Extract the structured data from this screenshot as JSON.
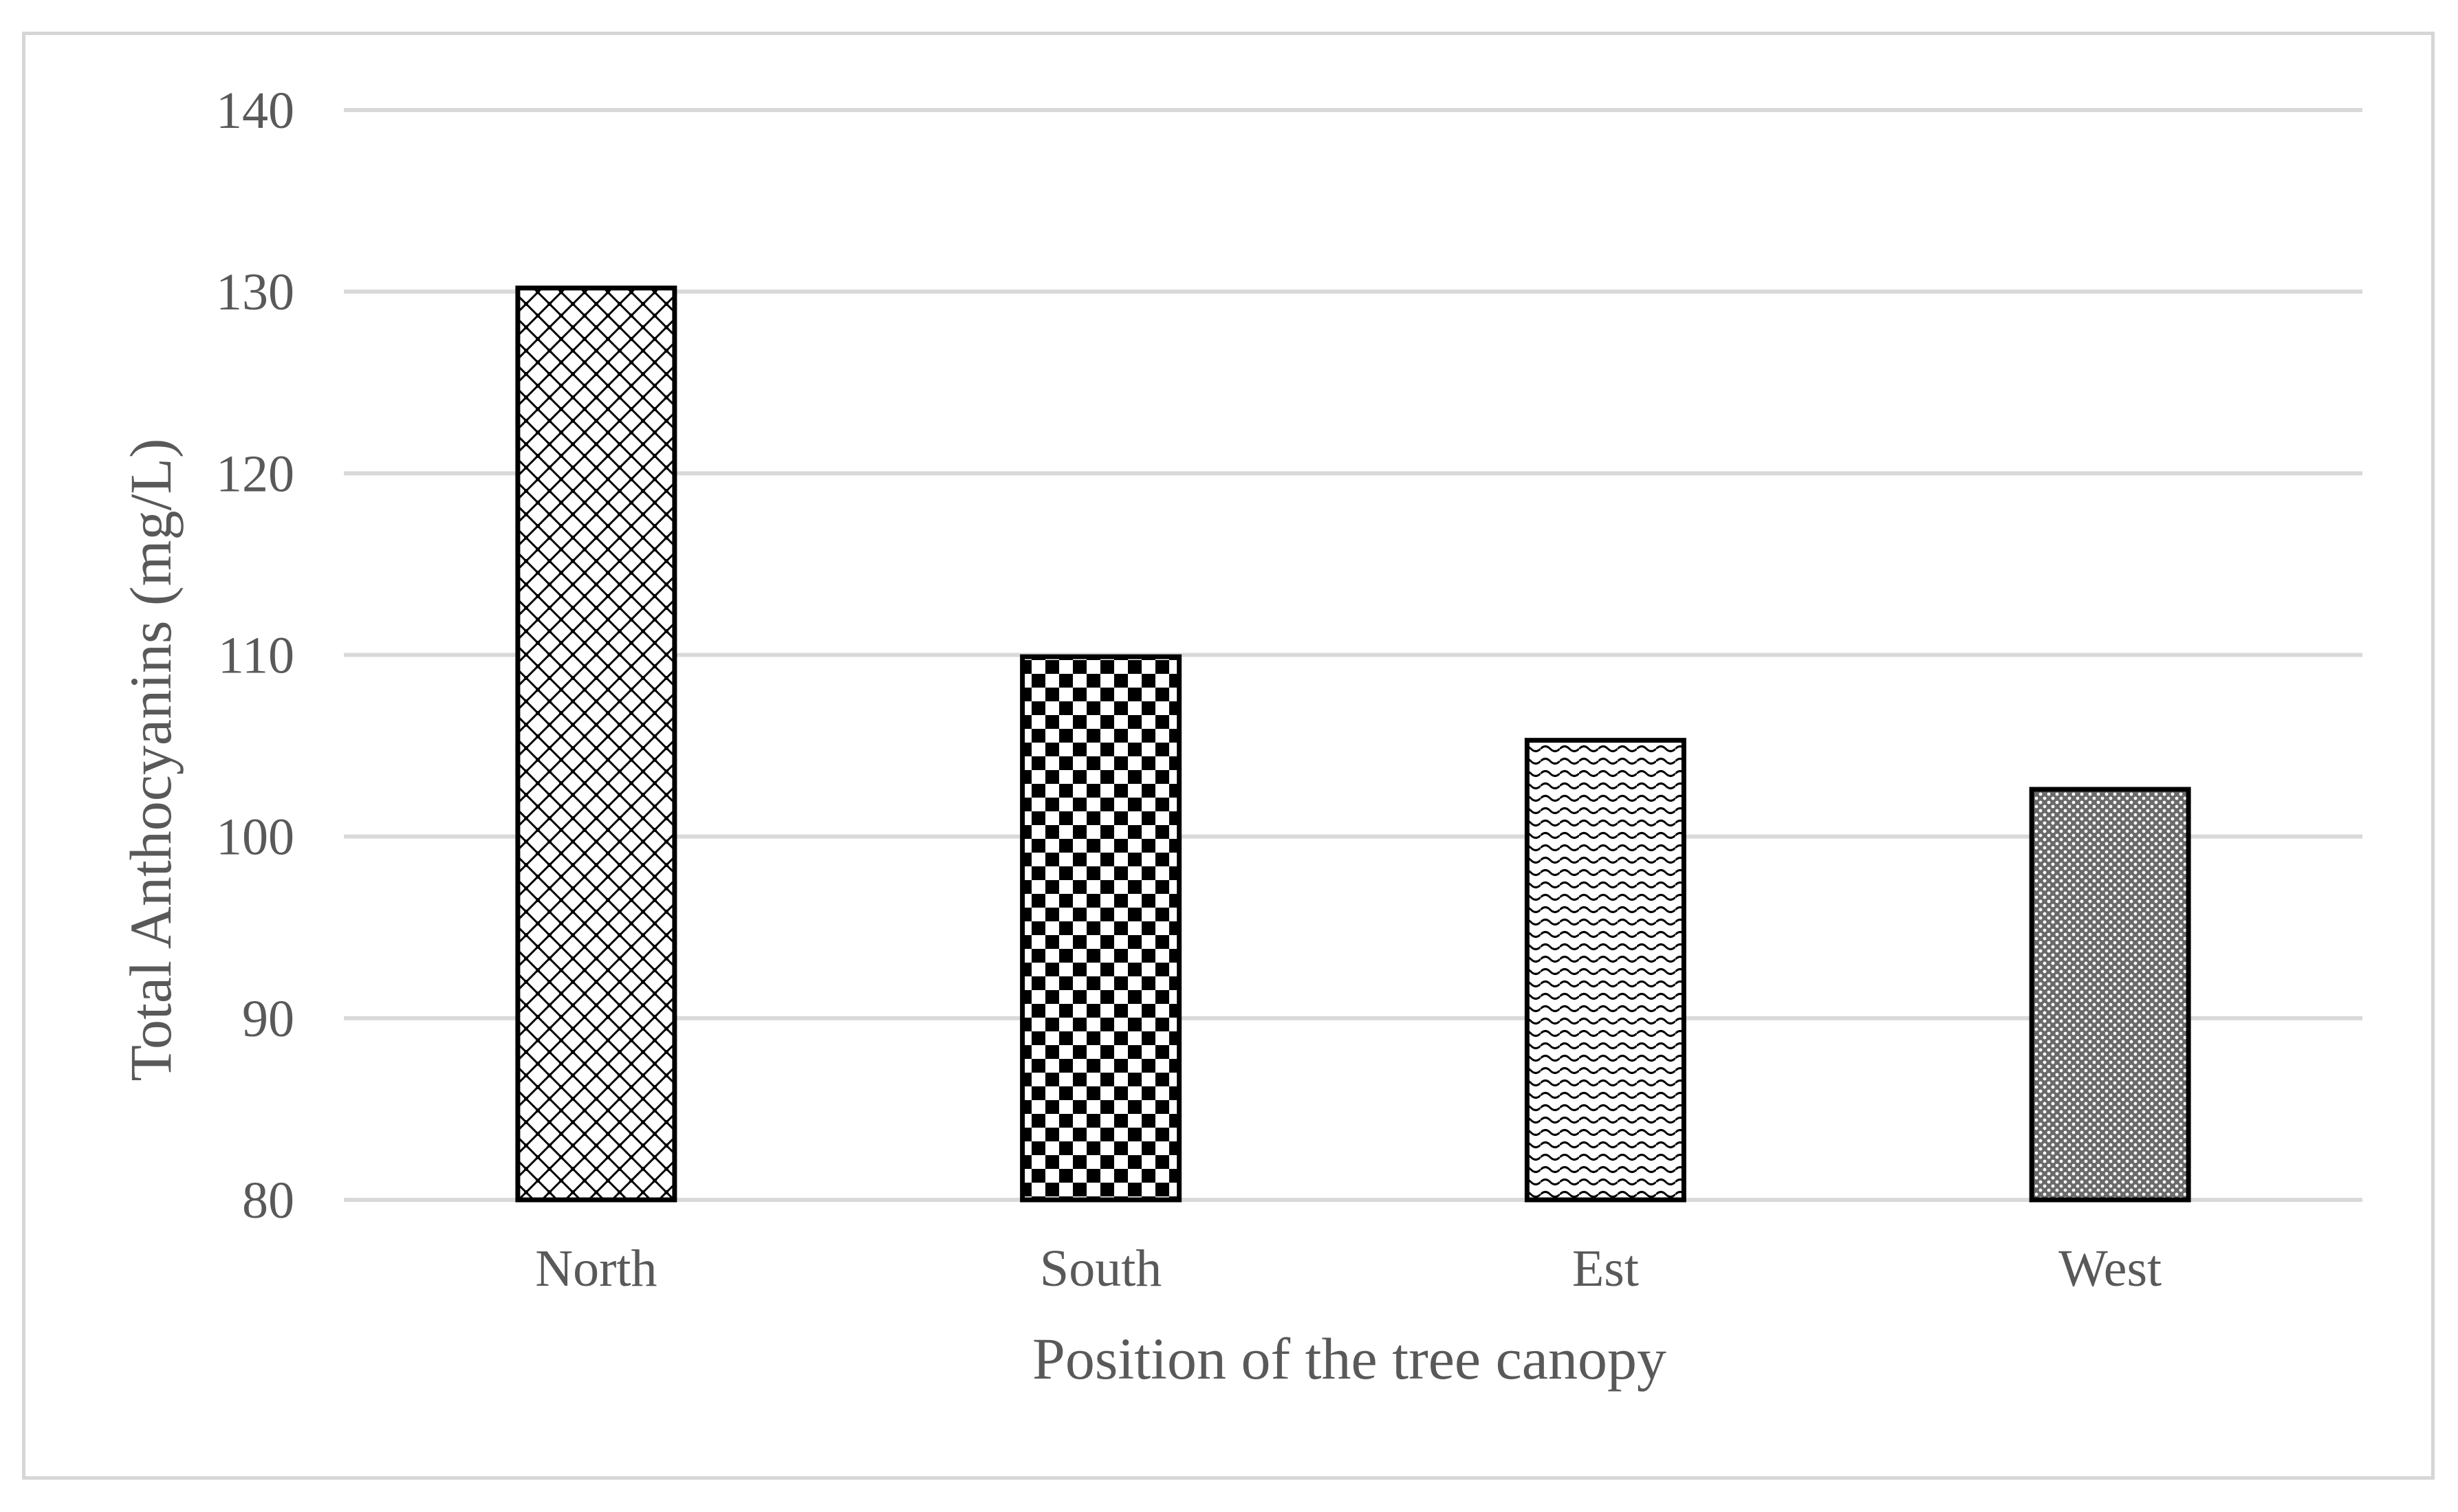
{
  "chart_data": {
    "type": "bar",
    "title": "",
    "xlabel": "Position of the tree canopy",
    "ylabel": "Total Anthocyanins (mg/L)",
    "categories": [
      "North",
      "South",
      "Est",
      "West"
    ],
    "values": [
      130.2,
      109.9,
      105.3,
      102.6
    ],
    "ylim": [
      80,
      140
    ],
    "yticks": [
      80,
      90,
      100,
      110,
      120,
      130,
      140
    ],
    "grid": true,
    "legend": "none",
    "bar_patterns": [
      "diamond-lattice",
      "checkerboard",
      "wave",
      "fine-dots"
    ],
    "colors": {
      "bar_outline": "#000000",
      "gridline": "#d9d9d9",
      "text": "#595959",
      "frame": "#d6d6d6"
    }
  }
}
